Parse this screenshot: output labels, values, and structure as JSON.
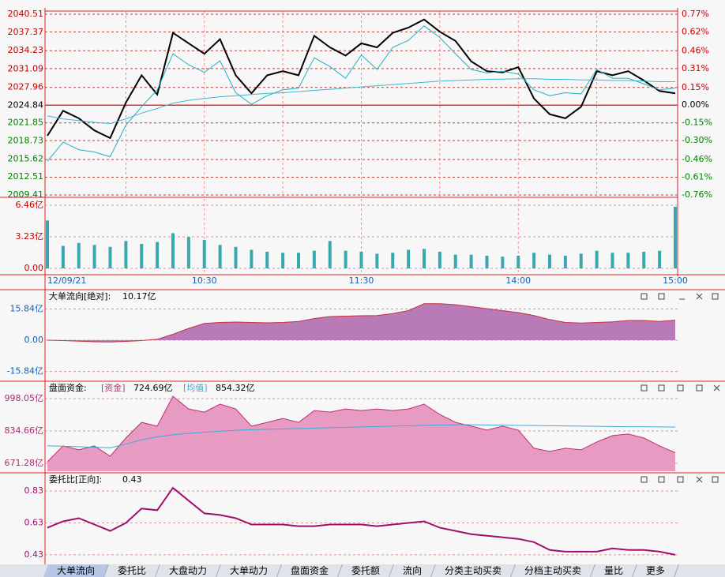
{
  "chart_data": [
    {
      "type": "line",
      "xlim": [
        0,
        240
      ],
      "ylim": [
        2009.41,
        2040.51
      ],
      "yticks": [
        2009.41,
        2012.51,
        2015.62,
        2018.73,
        2021.85,
        2024.84,
        2027.96,
        2031.09,
        2034.23,
        2037.37,
        2040.51
      ],
      "y2lim": [
        -0.76,
        0.77
      ],
      "y2ticks": [
        {
          "value": -0.76,
          "label": "-0.76%"
        },
        {
          "value": -0.61,
          "label": "-0.61%"
        },
        {
          "value": -0.46,
          "label": "-0.46%"
        },
        {
          "value": -0.3,
          "label": "-0.30%"
        },
        {
          "value": -0.15,
          "label": "-0.15%"
        },
        {
          "value": 0,
          "label": "0.00%"
        },
        {
          "value": 0.15,
          "label": "0.15%"
        },
        {
          "value": 0.31,
          "label": "0.31%"
        },
        {
          "value": 0.46,
          "label": "0.46%"
        },
        {
          "value": 0.62,
          "label": "0.62%"
        },
        {
          "value": 0.77,
          "label": "0.77%"
        }
      ],
      "xticks": [
        30,
        60,
        90,
        120,
        150,
        180,
        210
      ],
      "grid": true,
      "tickcolors": {
        "up": "#c00000",
        "down": "#008000",
        "flat": "#000000"
      },
      "series": [
        {
          "color": "#000000",
          "width": 2,
          "type": "line",
          "x": [
            0,
            6,
            12,
            18,
            24,
            30,
            36,
            42,
            48,
            54,
            60,
            66,
            72,
            78,
            84,
            90,
            96,
            102,
            108,
            114,
            120,
            126,
            132,
            138,
            144,
            150,
            156,
            162,
            168,
            174,
            180,
            186,
            192,
            198,
            204,
            210,
            216,
            222,
            228,
            234,
            240
          ],
          "values": [
            2019.6,
            2023.9,
            2022.6,
            2020.5,
            2019.2,
            2025.3,
            2030.0,
            2026.7,
            2037.3,
            2035.5,
            2033.7,
            2036.2,
            2030.0,
            2026.9,
            2030.0,
            2030.7,
            2030.0,
            2036.8,
            2034.8,
            2033.4,
            2035.5,
            2034.8,
            2037.3,
            2038.2,
            2039.6,
            2037.5,
            2035.9,
            2032.4,
            2030.7,
            2030.5,
            2031.4,
            2026.0,
            2023.3,
            2022.6,
            2024.6,
            2030.7,
            2030.0,
            2030.7,
            2029.1,
            2027.3,
            2026.9
          ]
        },
        {
          "color": "#20b0c0",
          "width": 1,
          "type": "line",
          "x": [
            0,
            6,
            12,
            18,
            24,
            30,
            36,
            42,
            48,
            54,
            60,
            66,
            72,
            78,
            84,
            90,
            96,
            102,
            108,
            114,
            120,
            126,
            132,
            138,
            144,
            150,
            156,
            162,
            168,
            174,
            180,
            186,
            192,
            198,
            204,
            210,
            216,
            222,
            228,
            234,
            240
          ],
          "values": [
            2015.2,
            2018.5,
            2017.2,
            2016.8,
            2016.0,
            2021.4,
            2024.6,
            2027.5,
            2033.7,
            2031.8,
            2030.5,
            2032.5,
            2027.0,
            2025.0,
            2026.5,
            2027.5,
            2027.8,
            2033.0,
            2031.5,
            2029.5,
            2033.5,
            2031.0,
            2034.8,
            2036.0,
            2038.5,
            2036.5,
            2033.7,
            2031.0,
            2030.4,
            2030.7,
            2030.2,
            2027.5,
            2026.5,
            2027.0,
            2026.8,
            2031.0,
            2029.5,
            2029.5,
            2028.5,
            2027.5,
            2027.8
          ]
        },
        {
          "color": "#40b8d0",
          "width": 1,
          "type": "line",
          "x": [
            0,
            6,
            12,
            18,
            24,
            30,
            36,
            42,
            48,
            54,
            60,
            66,
            72,
            78,
            84,
            90,
            96,
            102,
            108,
            114,
            120,
            126,
            132,
            138,
            144,
            150,
            156,
            162,
            168,
            174,
            180,
            186,
            192,
            198,
            204,
            210,
            216,
            222,
            228,
            234,
            240
          ],
          "values": [
            2023.0,
            2022.5,
            2022.2,
            2021.9,
            2021.7,
            2022.5,
            2023.5,
            2024.3,
            2025.2,
            2025.7,
            2026.0,
            2026.3,
            2026.5,
            2026.7,
            2026.9,
            2027.0,
            2027.2,
            2027.4,
            2027.6,
            2027.8,
            2028.0,
            2028.2,
            2028.4,
            2028.6,
            2028.8,
            2029.0,
            2029.1,
            2029.2,
            2029.3,
            2029.35,
            2029.4,
            2029.4,
            2029.3,
            2029.3,
            2029.2,
            2029.2,
            2029.1,
            2029.1,
            2029.0,
            2028.9,
            2028.9
          ]
        }
      ]
    },
    {
      "type": "bar",
      "xlim": [
        0,
        240
      ],
      "ylim": [
        0,
        6.46
      ],
      "yticks": [
        {
          "value": 0,
          "label": "0.00"
        },
        {
          "value": 3.23,
          "label": "3.23亿"
        },
        {
          "value": 6.46,
          "label": "6.46亿"
        }
      ],
      "xticks": [
        {
          "value": 0,
          "label": "12/09/21"
        },
        {
          "value": 60,
          "label": "10:30"
        },
        {
          "value": 120,
          "label": "11:30"
        },
        {
          "value": 180,
          "label": "14:00"
        },
        {
          "value": 240,
          "label": "15:00"
        }
      ],
      "grid": true,
      "tickcolor": "#c00000",
      "color": "#38a8b0",
      "x": [
        0,
        6,
        12,
        18,
        24,
        30,
        36,
        42,
        48,
        54,
        60,
        66,
        72,
        78,
        84,
        90,
        96,
        102,
        108,
        114,
        120,
        126,
        132,
        138,
        144,
        150,
        156,
        162,
        168,
        174,
        180,
        186,
        192,
        198,
        204,
        210,
        216,
        222,
        228,
        234,
        240
      ],
      "values": [
        4.9,
        2.3,
        2.6,
        2.4,
        2.2,
        2.8,
        2.5,
        2.7,
        3.6,
        3.2,
        2.9,
        2.4,
        2.2,
        1.9,
        1.7,
        1.6,
        1.6,
        1.8,
        2.8,
        1.8,
        1.7,
        1.5,
        1.6,
        1.9,
        2.0,
        1.7,
        1.4,
        1.4,
        1.3,
        1.2,
        1.3,
        1.6,
        1.4,
        1.3,
        1.5,
        1.8,
        1.6,
        1.6,
        1.7,
        1.8,
        6.3
      ]
    },
    {
      "type": "area",
      "title": "大单流向[绝对]:",
      "readout": "10.17亿",
      "xlim": [
        0,
        240
      ],
      "ylim": [
        -20,
        20
      ],
      "yticks": [
        {
          "value": -15.84,
          "label": "-15.84亿"
        },
        {
          "value": 0,
          "label": "0.00"
        },
        {
          "value": 15.84,
          "label": "15.84亿"
        }
      ],
      "grid": true,
      "tickcolor": "#1060c0",
      "series": [
        {
          "type": "area",
          "color": "#b97ab8",
          "stroke": "#c83040",
          "x": [
            0,
            6,
            12,
            18,
            24,
            30,
            36,
            42,
            48,
            54,
            60,
            66,
            72,
            78,
            84,
            90,
            96,
            102,
            108,
            114,
            120,
            126,
            132,
            138,
            144,
            150,
            156,
            162,
            168,
            174,
            180,
            186,
            192,
            198,
            204,
            210,
            216,
            222,
            228,
            234,
            240
          ],
          "values": [
            0,
            -0.2,
            -0.5,
            -0.8,
            -0.9,
            -0.6,
            -0.2,
            0.5,
            3,
            6,
            8.5,
            9,
            9.2,
            9,
            8.8,
            9,
            9.5,
            11,
            12,
            12.2,
            12.4,
            12.5,
            13.5,
            15,
            18.5,
            18.5,
            18,
            17,
            16,
            15,
            14,
            12.5,
            10.5,
            9,
            8.7,
            9,
            9.3,
            10,
            10,
            9.5,
            10.17
          ]
        }
      ]
    },
    {
      "type": "area",
      "title": "盘面资金:",
      "xlim": [
        0,
        240
      ],
      "ylim": [
        631,
        1030
      ],
      "yticks": [
        {
          "value": 671.28,
          "label": "671.28亿"
        },
        {
          "value": 834.66,
          "label": "834.66亿"
        },
        {
          "value": 998.05,
          "label": "998.05亿"
        }
      ],
      "grid": true,
      "tickcolor": "#a03070",
      "series": [
        {
          "name": "[资金]",
          "readout": "724.69亿",
          "type": "area",
          "color": "#e79bc3",
          "stroke": "#c03070",
          "x": [
            0,
            6,
            12,
            18,
            24,
            30,
            36,
            42,
            48,
            54,
            60,
            66,
            72,
            78,
            84,
            90,
            96,
            102,
            108,
            114,
            120,
            126,
            132,
            138,
            144,
            150,
            156,
            162,
            168,
            174,
            180,
            186,
            192,
            198,
            204,
            210,
            216,
            222,
            228,
            234,
            240
          ],
          "values": [
            679,
            759,
            739,
            759,
            707,
            799,
            878,
            859,
            1010,
            946,
            930,
            970,
            946,
            859,
            878,
            898,
            878,
            938,
            930,
            946,
            938,
            946,
            938,
            946,
            970,
            918,
            878,
            859,
            839,
            859,
            839,
            747,
            731,
            747,
            739,
            779,
            811,
            819,
            799,
            759,
            724.69
          ]
        },
        {
          "name": "[均值]",
          "readout": "854.32亿",
          "type": "line",
          "color": "#40a8d8",
          "x": [
            0,
            6,
            12,
            18,
            24,
            30,
            36,
            42,
            48,
            54,
            60,
            66,
            72,
            78,
            84,
            90,
            96,
            102,
            108,
            114,
            120,
            126,
            132,
            138,
            144,
            150,
            156,
            162,
            168,
            174,
            180,
            186,
            192,
            198,
            204,
            210,
            216,
            222,
            228,
            234,
            240
          ],
          "values": [
            760,
            757,
            755,
            752,
            750,
            768,
            790,
            805,
            815,
            822,
            828,
            833,
            838,
            841,
            843,
            845,
            847,
            849,
            851,
            853,
            855,
            857,
            859,
            861,
            863,
            865,
            866,
            866,
            865,
            864,
            863,
            862,
            861,
            860,
            859,
            858,
            857,
            856,
            856,
            855,
            854.32
          ]
        }
      ]
    },
    {
      "type": "line",
      "title": "委托比[正向]:",
      "readout": "0.43",
      "xlim": [
        0,
        240
      ],
      "ylim": [
        0.38,
        0.9
      ],
      "yticks": [
        0.43,
        0.63,
        0.83
      ],
      "grid": true,
      "tickcolor": "#a0106a",
      "series": [
        {
          "type": "line",
          "color": "#a0106a",
          "width": 2,
          "x": [
            0,
            6,
            12,
            18,
            24,
            30,
            36,
            42,
            48,
            54,
            60,
            66,
            72,
            78,
            84,
            90,
            96,
            102,
            108,
            114,
            120,
            126,
            132,
            138,
            144,
            150,
            156,
            162,
            168,
            174,
            180,
            186,
            192,
            198,
            204,
            210,
            216,
            222,
            228,
            234,
            240
          ],
          "values": [
            0.6,
            0.64,
            0.66,
            0.62,
            0.58,
            0.63,
            0.72,
            0.71,
            0.85,
            0.77,
            0.69,
            0.68,
            0.66,
            0.62,
            0.62,
            0.62,
            0.61,
            0.61,
            0.62,
            0.62,
            0.62,
            0.61,
            0.62,
            0.63,
            0.64,
            0.6,
            0.58,
            0.56,
            0.55,
            0.54,
            0.53,
            0.51,
            0.46,
            0.45,
            0.45,
            0.45,
            0.47,
            0.46,
            0.46,
            0.45,
            0.43
          ]
        }
      ]
    }
  ],
  "tabs": [
    "大单流向",
    "委托比",
    "大盘动力",
    "大单动力",
    "盘面资金",
    "委托额",
    "流向",
    "分类主动买卖",
    "分档主动买卖",
    "量比",
    "更多"
  ]
}
